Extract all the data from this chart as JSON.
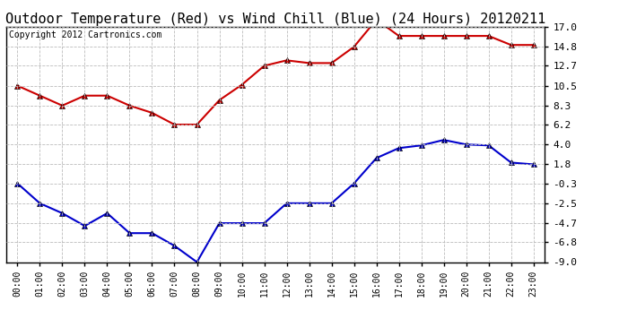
{
  "title": "Outdoor Temperature (Red) vs Wind Chill (Blue) (24 Hours) 20120211",
  "copyright_text": "Copyright 2012 Cartronics.com",
  "x_labels": [
    "00:00",
    "01:00",
    "02:00",
    "03:00",
    "04:00",
    "05:00",
    "06:00",
    "07:00",
    "08:00",
    "09:00",
    "10:00",
    "11:00",
    "12:00",
    "13:00",
    "14:00",
    "15:00",
    "16:00",
    "17:00",
    "18:00",
    "19:00",
    "20:00",
    "21:00",
    "22:00",
    "23:00"
  ],
  "temp_red": [
    10.5,
    9.4,
    8.3,
    9.4,
    9.4,
    8.3,
    7.5,
    6.2,
    6.2,
    8.9,
    10.6,
    12.7,
    13.3,
    13.0,
    13.0,
    14.8,
    17.8,
    16.0,
    16.0,
    16.0,
    16.0,
    16.0,
    15.0,
    15.0
  ],
  "wind_chill": [
    -0.3,
    -2.5,
    -3.6,
    -5.0,
    -3.6,
    -5.8,
    -5.8,
    -7.2,
    -9.0,
    -4.7,
    -4.7,
    -4.7,
    -2.5,
    -2.5,
    -2.5,
    -0.3,
    2.5,
    3.6,
    3.9,
    4.5,
    4.0,
    3.9,
    2.0,
    1.8
  ],
  "yticks": [
    17.0,
    14.8,
    12.7,
    10.5,
    8.3,
    6.2,
    4.0,
    1.8,
    -0.3,
    -2.5,
    -4.7,
    -6.8,
    -9.0
  ],
  "ylim": [
    -9.0,
    17.0
  ],
  "background_color": "#ffffff",
  "plot_bg_color": "#ffffff",
  "grid_color": "#bbbbbb",
  "red_color": "#cc0000",
  "blue_color": "#0000cc",
  "title_fontsize": 11,
  "copyright_fontsize": 7,
  "tick_fontsize": 8,
  "xtick_fontsize": 7
}
